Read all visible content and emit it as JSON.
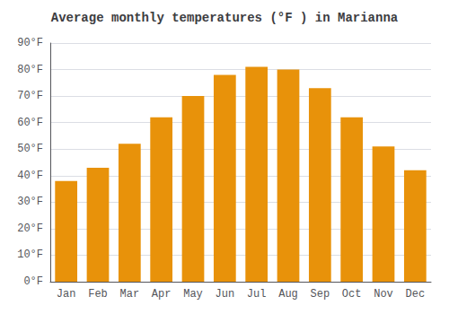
{
  "chart_data": {
    "type": "bar",
    "title": "Average monthly temperatures (°F ) in Marianna",
    "categories": [
      "Jan",
      "Feb",
      "Mar",
      "Apr",
      "May",
      "Jun",
      "Jul",
      "Aug",
      "Sep",
      "Oct",
      "Nov",
      "Dec"
    ],
    "values": [
      38,
      43,
      52,
      62,
      70,
      78,
      81,
      80,
      73,
      62,
      51,
      42
    ],
    "color": "#E8920A",
    "ylim": [
      0,
      90
    ],
    "yticks": [
      {
        "value": 0,
        "label": "0°F"
      },
      {
        "value": 10,
        "label": "10°F"
      },
      {
        "value": 20,
        "label": "20°F"
      },
      {
        "value": 30,
        "label": "30°F"
      },
      {
        "value": 40,
        "label": "40°F"
      },
      {
        "value": 50,
        "label": "50°F"
      },
      {
        "value": 60,
        "label": "60°F"
      },
      {
        "value": 70,
        "label": "70°F"
      },
      {
        "value": 80,
        "label": "80°F"
      },
      {
        "value": 90,
        "label": "90°F"
      }
    ],
    "grid": true
  }
}
